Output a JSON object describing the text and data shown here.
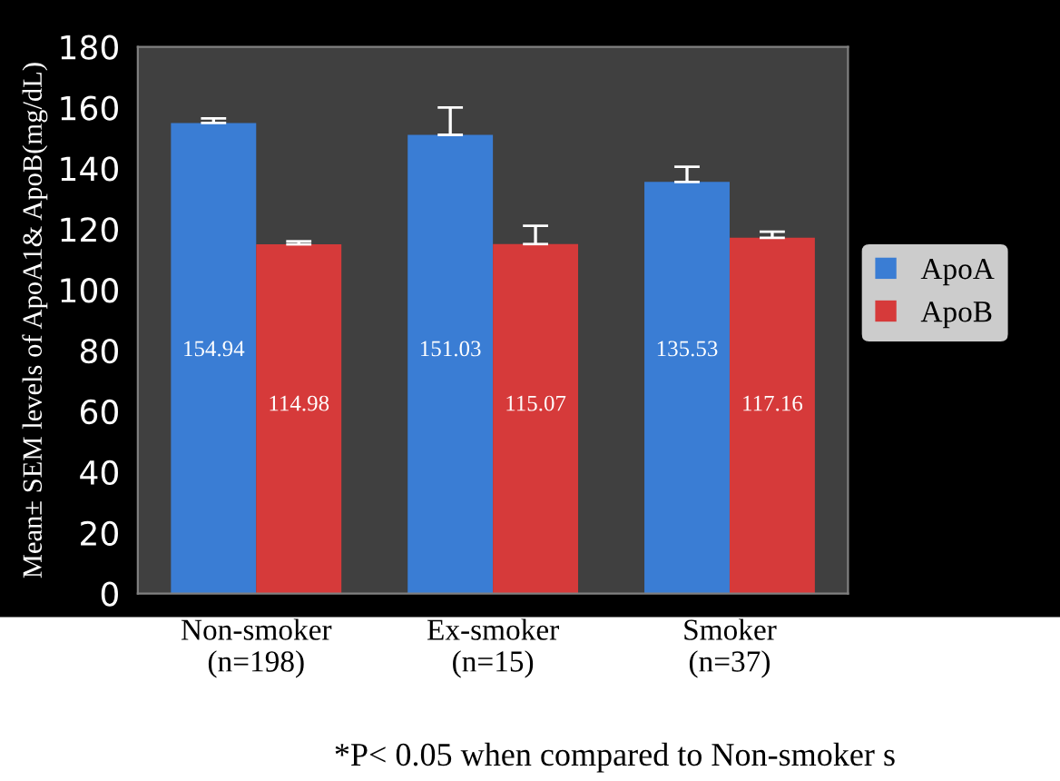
{
  "chart_data": {
    "type": "bar",
    "ylabel": "Mean± SEM levels of ApoA1& ApoB(mg/dL)",
    "categories": [
      "Non-smoker\n(n=198)",
      "Ex-smoker\n(n=15)",
      "Smoker\n(n=37)"
    ],
    "series": [
      {
        "name": "ApoA",
        "color": "#3a7dd4",
        "values": [
          154.94,
          151.03,
          135.53
        ],
        "errors": [
          1.5,
          9,
          5
        ]
      },
      {
        "name": "ApoB",
        "color": "#d63a3a",
        "values": [
          114.98,
          115.07,
          117.16
        ],
        "errors": [
          1,
          6,
          2
        ]
      }
    ],
    "ylim": [
      0,
      180
    ],
    "yticks": [
      0,
      20,
      40,
      60,
      80,
      100,
      120,
      140,
      160,
      180
    ],
    "grid": false,
    "legend": "right",
    "data_labels": true,
    "annotations": [
      "*P< 0.05 when compared to Non-smoker s"
    ]
  }
}
